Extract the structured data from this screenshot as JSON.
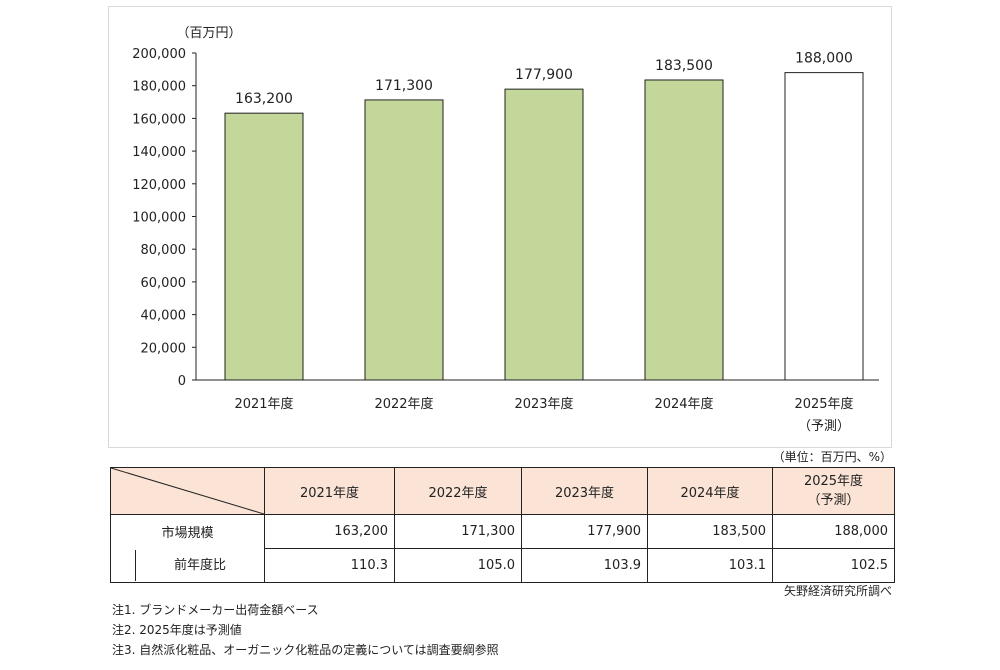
{
  "chart_data": {
    "type": "bar",
    "ylabel": "（百万円）",
    "categories": [
      "2021年度",
      "2022年度",
      "2023年度",
      "2024年度",
      "2025年度"
    ],
    "category_sublabels": [
      "",
      "",
      "",
      "",
      "（予測）"
    ],
    "values": [
      163200,
      171300,
      177900,
      183500,
      188000
    ],
    "value_labels": [
      "163,200",
      "171,300",
      "177,900",
      "183,500",
      "188,000"
    ],
    "ylim": [
      0,
      200000
    ],
    "yticks": [
      "0",
      "20,000",
      "40,000",
      "60,000",
      "80,000",
      "100,000",
      "120,000",
      "140,000",
      "160,000",
      "180,000",
      "200,000"
    ],
    "bar_colors": [
      "#c4d79b",
      "#c4d79b",
      "#c4d79b",
      "#c4d79b",
      "#ffffff"
    ],
    "grid": false
  },
  "table": {
    "unit": "（単位：百万円、%）",
    "headers": [
      "2021年度",
      "2022年度",
      "2023年度",
      "2024年度",
      "2025年度\n（予測）"
    ],
    "rows": [
      {
        "label": "市場規模",
        "values": [
          "163,200",
          "171,300",
          "177,900",
          "183,500",
          "188,000"
        ]
      },
      {
        "label": "前年度比",
        "values": [
          "110.3",
          "105.0",
          "103.9",
          "103.1",
          "102.5"
        ]
      }
    ],
    "source": "矢野経済研究所調べ"
  },
  "notes": [
    "注1. ブランドメーカー出荷金額ベース",
    "注2. 2025年度は予測値",
    "注3. 自然派化粧品、オーガニック化粧品の定義については調査要綱参照"
  ]
}
